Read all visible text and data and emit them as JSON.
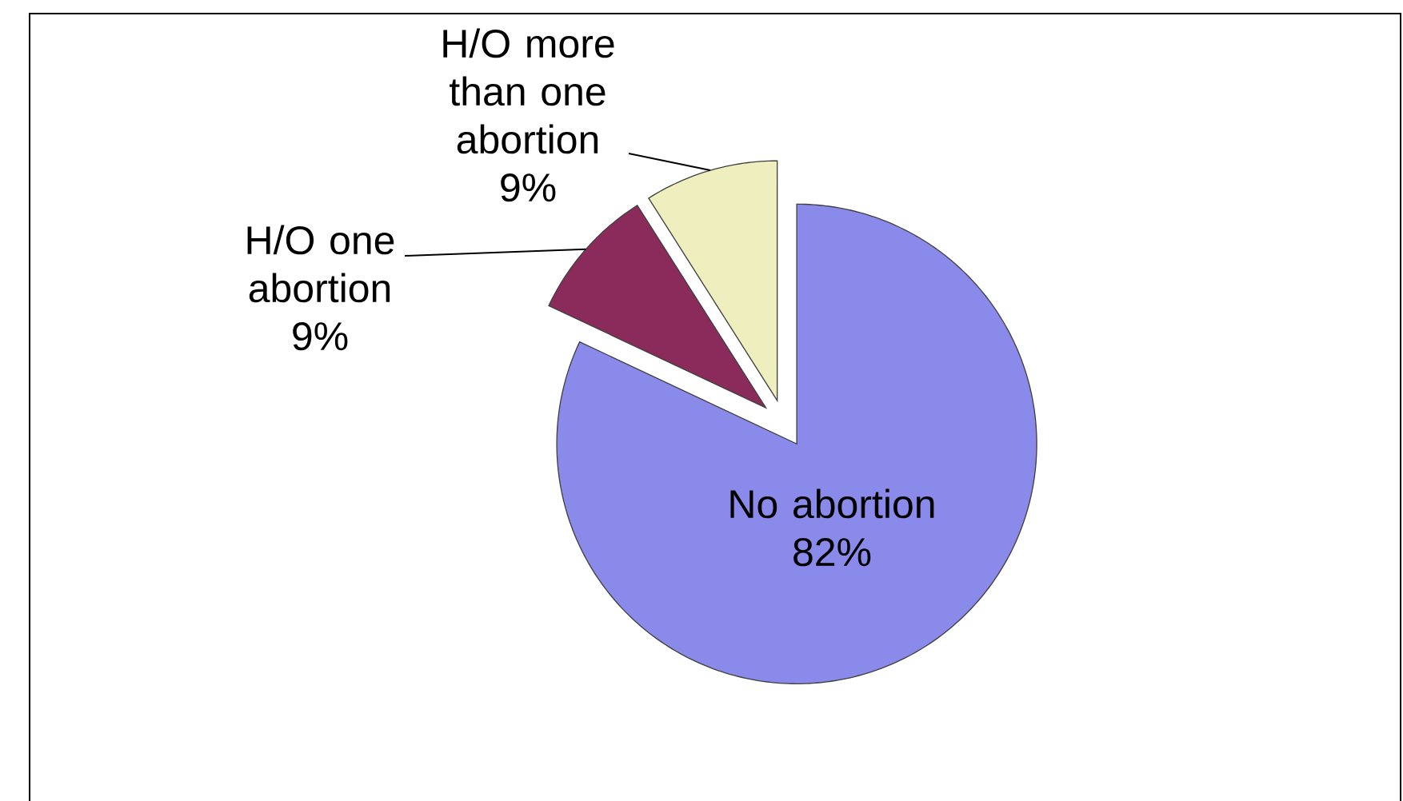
{
  "chart_data": {
    "type": "pie",
    "categories": [
      "No abortion",
      "H/O one abortion",
      "H/O more than one abortion"
    ],
    "values": [
      82,
      9,
      9
    ],
    "colors": [
      "#8a8aea",
      "#8b2b5b",
      "#eeeebe"
    ],
    "value_labels": [
      "82%",
      "9%",
      "9%"
    ]
  }
}
